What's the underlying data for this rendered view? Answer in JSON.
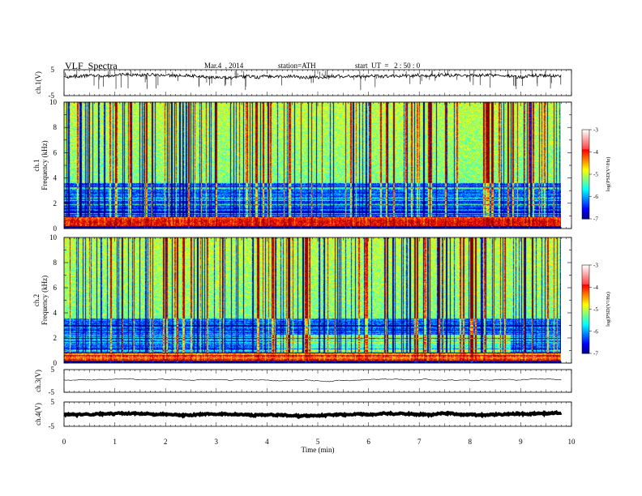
{
  "header": {
    "title": "VLF  Spectra",
    "date": "Mar.4  , 2014",
    "station": "station=ATH",
    "start": "start  UT  =   2 : 50 : 0"
  },
  "chart_data": {
    "type": "heatmap",
    "title": "VLF  Spectra",
    "xlabel": "Time  (min)",
    "xlim": [
      0,
      10
    ],
    "x_ticks": [
      "0",
      "1",
      "2",
      "3",
      "4",
      "5",
      "6",
      "7",
      "8",
      "9",
      "10"
    ],
    "data_end_min": 9.8,
    "panels": [
      {
        "id": "ch1-waveform",
        "type": "line",
        "ylabel": "ch.1(V)",
        "ylim": [
          -5,
          5
        ],
        "y_ticks": [
          "5",
          "-5"
        ],
        "baseline_v": 2.6,
        "noise_v": 0.6,
        "spike_count": 90
      },
      {
        "id": "ch1-spectrogram",
        "type": "heatmap",
        "ylabel_lines": [
          "ch.1",
          "Frequency  (kHz)"
        ],
        "ylim_khz": [
          0,
          10
        ],
        "y_ticks": [
          "0",
          "2",
          "4",
          "6",
          "8",
          "10"
        ],
        "colorbar": {
          "label": "log(PSD(V²/Hz)",
          "range": [
            -7,
            -3
          ],
          "ticks": [
            "-3",
            "-4",
            "-5",
            "-6",
            "-7"
          ]
        },
        "seed": 11,
        "change_at_min": null
      },
      {
        "id": "ch2-spectrogram",
        "type": "heatmap",
        "ylabel_lines": [
          "ch.2",
          "Frequency  (kHz)"
        ],
        "ylim_khz": [
          0,
          10
        ],
        "y_ticks": [
          "0",
          "2",
          "4",
          "6",
          "8",
          "10"
        ],
        "colorbar": {
          "label": "log(PSD(V²/Hz)",
          "range": [
            -7,
            -3
          ],
          "ticks": [
            "-3",
            "-4",
            "-5",
            "-6",
            "-7"
          ]
        },
        "seed": 29,
        "change_at_min": 4.1,
        "change_end_min": 8.8
      },
      {
        "id": "ch3-waveform",
        "type": "line",
        "ylabel": "ch.3(V)",
        "ylim": [
          -5,
          5
        ],
        "y_ticks": [
          "5",
          "-5"
        ],
        "baseline_v": 0.5,
        "noise_v": 0.05,
        "spike_count": 0
      },
      {
        "id": "ch4-waveform",
        "type": "line",
        "ylabel": "ch.4(V)",
        "ylim": [
          -5,
          5
        ],
        "y_ticks": [
          "5",
          "-5"
        ],
        "baseline_v": -0.2,
        "noise_v": 0.25,
        "spike_count": 0
      }
    ]
  }
}
